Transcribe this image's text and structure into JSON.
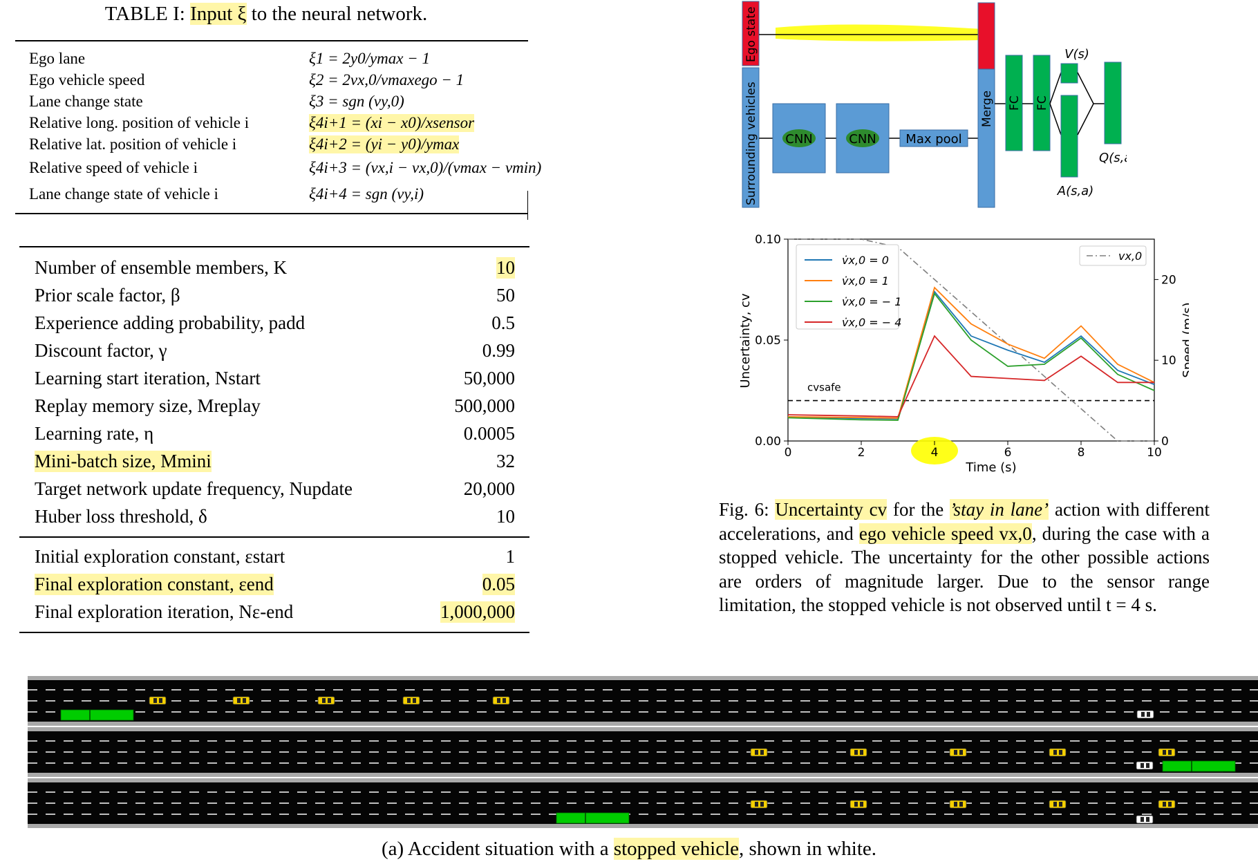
{
  "table1": {
    "caption_prefix": "TABLE I: ",
    "caption_highlight": "Input ξ",
    "caption_suffix": " to the neural network.",
    "rows": [
      {
        "label": "Ego lane",
        "formula": "ξ1 = 2y0/ymax − 1"
      },
      {
        "label": "Ego vehicle speed",
        "formula": "ξ2 = 2vx,0/vmaxego − 1"
      },
      {
        "label": "Lane change state",
        "formula": "ξ3 = sgn (vy,0)"
      },
      {
        "label": "Relative long. position of vehicle i",
        "formula": "ξ4i+1 = (xi − x0)/xsensor"
      },
      {
        "label": "Relative lat. position of vehicle i",
        "formula": "ξ4i+2 = (yi − y0)/ymax"
      },
      {
        "label": "Relative speed of vehicle i",
        "formula": "ξ4i+3 = (vx,i − vx,0)/(vmax − vmin)"
      },
      {
        "label": "Lane change state of vehicle i",
        "formula": "ξ4i+4 = sgn (vy,i)"
      }
    ]
  },
  "table2": {
    "rows": [
      {
        "label": "Number of ensemble members, K",
        "value": "10"
      },
      {
        "label": "Prior scale factor, β",
        "value": "50"
      },
      {
        "label": "Experience adding probability, padd",
        "value": "0.5"
      },
      {
        "label": "Discount factor, γ",
        "value": "0.99"
      },
      {
        "label": "Learning start iteration, Nstart",
        "value": "50,000"
      },
      {
        "label": "Replay memory size, Mreplay",
        "value": "500,000"
      },
      {
        "label": "Learning rate, η",
        "value": "0.0005"
      },
      {
        "label": "Mini-batch size, Mmini",
        "value": "32"
      },
      {
        "label": "Target network update frequency, Nupdate",
        "value": "20,000"
      },
      {
        "label": "Huber loss threshold, δ",
        "value": "10"
      }
    ],
    "rows2": [
      {
        "label": "Initial exploration constant, εstart",
        "value": "1"
      },
      {
        "label": "Final exploration constant, εend",
        "value": "0.05"
      },
      {
        "label": "Final exploration iteration, Nε-end",
        "value": "1,000,000"
      }
    ]
  },
  "network": {
    "ego_state": "Ego state",
    "surrounding": "Surrounding vehicles",
    "cnn1": "CNN",
    "cnn2": "CNN",
    "maxpool": "Max pool",
    "merge": "Merge",
    "fc1": "FC",
    "fc2": "FC",
    "value": "V(s)",
    "advantage": "A(s,a)",
    "q": "Q(s,a )",
    "colors": {
      "blue": "#5b9bd5",
      "red": "#e8102a",
      "green": "#00b050",
      "highlight": "#ffff00"
    }
  },
  "chart_data": {
    "type": "line",
    "xlabel": "Time (s)",
    "ylabel": "Uncertainty, cv",
    "ylabel_right": "Speed (m/s)",
    "xlim": [
      0,
      10
    ],
    "ylim": [
      0,
      0.1
    ],
    "ylim_right": [
      0,
      25
    ],
    "xticks": [
      "0",
      "2",
      "4",
      "6",
      "8",
      "10"
    ],
    "yticks": [
      "0.00",
      "0.05",
      "0.10"
    ],
    "yticks_right": [
      "0",
      "10",
      "20"
    ],
    "x": [
      0,
      1,
      2,
      3,
      4,
      5,
      6,
      7,
      8,
      9,
      10
    ],
    "series": [
      {
        "name": "v̇x,0 = 0",
        "color": "#1f77b4",
        "values": [
          0.012,
          0.0115,
          0.0112,
          0.011,
          0.074,
          0.052,
          0.045,
          0.039,
          0.052,
          0.035,
          0.028
        ]
      },
      {
        "name": "v̇x,0 = 1",
        "color": "#ff7f0e",
        "values": [
          0.012,
          0.0118,
          0.0116,
          0.0113,
          0.076,
          0.058,
          0.048,
          0.041,
          0.057,
          0.038,
          0.029
        ]
      },
      {
        "name": "v̇x,0 = − 1",
        "color": "#2ca02c",
        "values": [
          0.0115,
          0.011,
          0.0105,
          0.0103,
          0.073,
          0.05,
          0.037,
          0.038,
          0.051,
          0.033,
          0.025
        ]
      },
      {
        "name": "v̇x,0 = − 4",
        "color": "#d62728",
        "values": [
          0.013,
          0.0127,
          0.0124,
          0.012,
          0.052,
          0.032,
          0.031,
          0.03,
          0.042,
          0.029,
          0.029
        ]
      }
    ],
    "speed_series": {
      "name": "vx,0",
      "color": "#7f7f7f",
      "x": [
        0,
        2,
        3,
        4,
        5,
        6,
        7,
        8,
        9,
        9.5,
        10
      ],
      "values": [
        25,
        25,
        24,
        20,
        16,
        12,
        8,
        4,
        0,
        0,
        0
      ]
    },
    "threshold": {
      "label": "cvsafe",
      "value": 0.02
    },
    "legend_position": "top-left",
    "legend2_position": "top-right"
  },
  "figure6": {
    "caption_parts": [
      {
        "text": "Fig. 6: ",
        "hl": false,
        "it": false
      },
      {
        "text": "Uncertainty cv",
        "hl": true,
        "it": false
      },
      {
        "text": " for the ",
        "hl": false,
        "it": false
      },
      {
        "text": "’stay in lane’",
        "hl": true,
        "it": true
      },
      {
        "text": " action with different accelerations, and ",
        "hl": false,
        "it": false
      },
      {
        "text": "ego vehicle speed vx,0",
        "hl": true,
        "it": false
      },
      {
        "text": ", during the case with a stopped vehicle. The uncertainty for the other possible actions are orders of magnitude larger. Due to the sensor range limitation, the stopped vehicle is not observed until t = 4 s.",
        "hl": false,
        "it": false
      }
    ]
  },
  "simulation": {
    "caption_prefix": "(a) Accident situation with a ",
    "caption_highlight": "stopped vehicle",
    "caption_suffix": ", shown in white."
  }
}
